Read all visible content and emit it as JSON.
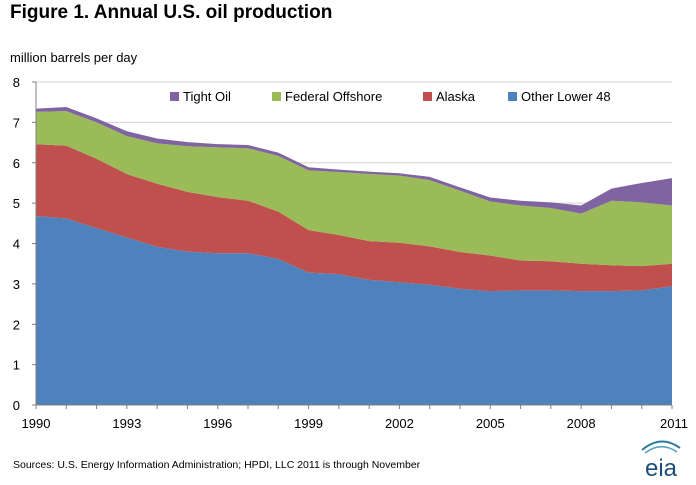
{
  "figure": {
    "title": "Figure 1.  Annual U.S. oil production",
    "source": "Sources:  U.S. Energy Information Administration; HPDI, LLC 2011 is through November",
    "logo_text": "eia"
  },
  "chart_data": {
    "type": "area",
    "stacked": true,
    "title": "Figure 1.  Annual U.S. oil production",
    "ylabel": "million barrels per day",
    "xlabel": "",
    "x": [
      1990,
      1991,
      1992,
      1993,
      1994,
      1995,
      1996,
      1997,
      1998,
      1999,
      2000,
      2001,
      2002,
      2003,
      2004,
      2005,
      2006,
      2007,
      2008,
      2009,
      2010,
      2011
    ],
    "xlim": [
      1990,
      2011
    ],
    "ylim": [
      0,
      8
    ],
    "x_ticks": [
      "1990",
      "1993",
      "1996",
      "1999",
      "2002",
      "2005",
      "2008",
      "2011"
    ],
    "y_ticks": [
      "0",
      "1",
      "2",
      "3",
      "4",
      "5",
      "6",
      "7",
      "8"
    ],
    "grid": "horizontal",
    "legend_position": "top-right",
    "legend_order": [
      "Tight Oil",
      "Federal Offshore",
      "Alaska",
      "Other Lower 48"
    ],
    "series": [
      {
        "name": "Other Lower 48",
        "color": "#4f81bd",
        "values": [
          4.68,
          4.62,
          4.38,
          4.15,
          3.92,
          3.8,
          3.76,
          3.76,
          3.62,
          3.28,
          3.24,
          3.1,
          3.04,
          2.98,
          2.88,
          2.82,
          2.84,
          2.84,
          2.82,
          2.82,
          2.84,
          2.94
        ]
      },
      {
        "name": "Alaska",
        "color": "#c0504d",
        "values": [
          1.78,
          1.8,
          1.72,
          1.57,
          1.56,
          1.48,
          1.39,
          1.3,
          1.17,
          1.05,
          0.97,
          0.96,
          0.98,
          0.95,
          0.91,
          0.88,
          0.74,
          0.72,
          0.68,
          0.64,
          0.6,
          0.56
        ]
      },
      {
        "name": "Federal Offshore",
        "color": "#9bbb59",
        "values": [
          0.8,
          0.86,
          0.9,
          0.94,
          1.0,
          1.13,
          1.23,
          1.3,
          1.38,
          1.48,
          1.56,
          1.66,
          1.66,
          1.64,
          1.52,
          1.34,
          1.36,
          1.32,
          1.24,
          1.6,
          1.58,
          1.44
        ]
      },
      {
        "name": "Tight Oil",
        "color": "#8064a2",
        "values": [
          0.08,
          0.1,
          0.1,
          0.12,
          0.12,
          0.1,
          0.08,
          0.08,
          0.08,
          0.08,
          0.06,
          0.06,
          0.06,
          0.08,
          0.08,
          0.1,
          0.12,
          0.14,
          0.2,
          0.3,
          0.48,
          0.68
        ]
      }
    ]
  }
}
